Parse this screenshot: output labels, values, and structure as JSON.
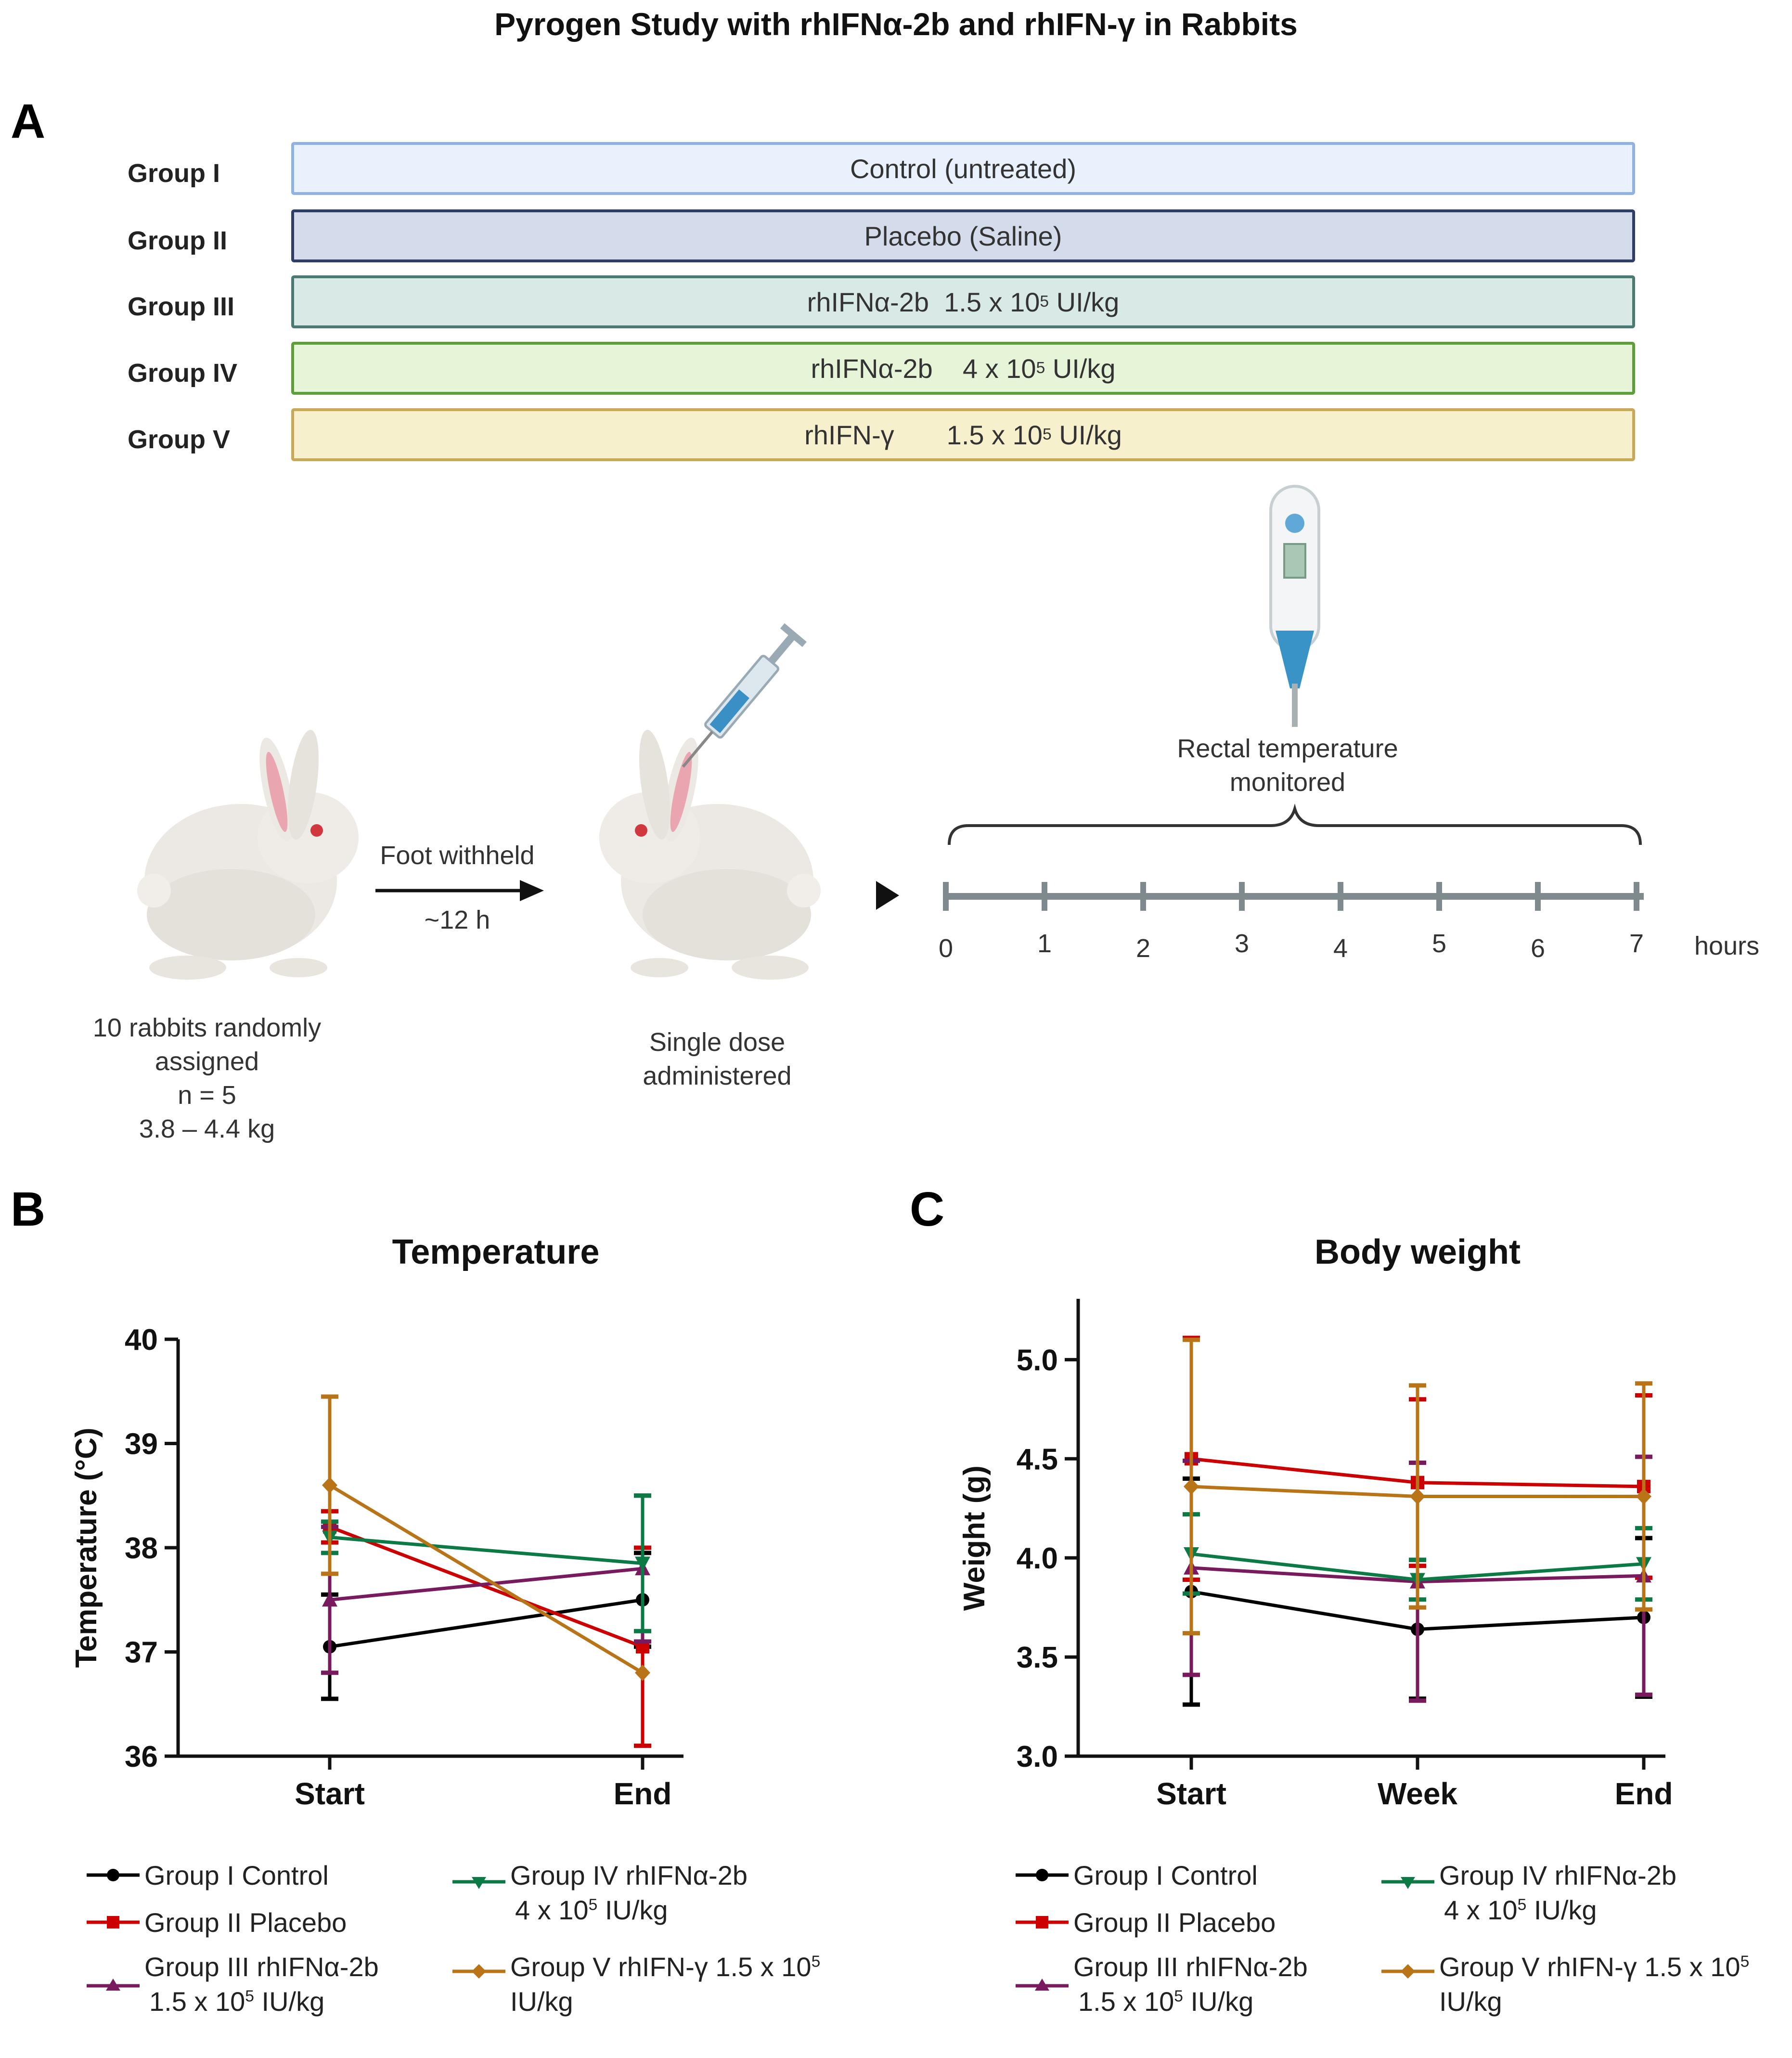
{
  "figure_title": "Pyrogen Study with rhIFNα-2b and rhIFN-γ in Rabbits",
  "panels": {
    "a": "A",
    "b": "B",
    "c": "C"
  },
  "groups": [
    {
      "label": "Group I",
      "bar_text": "Control (untreated)",
      "fill": "#e9f1fd",
      "border": "#8fb2e3"
    },
    {
      "label": "Group II",
      "bar_text": "Placebo (Saline)",
      "fill": "#d4dcec",
      "border": "#2f3e66"
    },
    {
      "label": "Group III",
      "bar_text_a": "rhIFNα-2b",
      "bar_text_b": "1.5 x 10",
      "exp": "5",
      "unit": "UI/kg",
      "fill": "#d9eae6",
      "border": "#4a7a72"
    },
    {
      "label": "Group IV",
      "bar_text_a": "rhIFNα-2b",
      "bar_text_b": "4 x 10",
      "exp": "5",
      "unit": "UI/kg",
      "fill": "#e6f4d8",
      "border": "#5e9e3a"
    },
    {
      "label": "Group V",
      "bar_text_a": "rhIFN-γ",
      "bar_text_b": "1.5 x 10",
      "exp": "5",
      "unit": "UI/kg",
      "fill": "#f7f0cc",
      "border": "#c8a95a"
    }
  ],
  "protocol": {
    "rabbits_line1": "10 rabbits randomly",
    "rabbits_line2": "assigned",
    "rabbits_line3": "n = 5",
    "rabbits_line4": "3.8 – 4.4 kg",
    "arrow_label_top": "Foot withheld",
    "arrow_label_bottom": "~12 h",
    "dose_line1": "Single dose",
    "dose_line2": "administered",
    "monitor_line1": "Rectal temperature",
    "monitor_line2": "monitored",
    "hours_ticks": [
      "0",
      "1",
      "2",
      "3",
      "4",
      "5",
      "6",
      "7"
    ],
    "hours_label": "hours"
  },
  "colors": {
    "group1": "#000000",
    "group2": "#cc0000",
    "group3": "#7a1a5e",
    "group4": "#0b7a45",
    "group5": "#b87417",
    "timeline": "#7f8a8e"
  },
  "legend_b": {
    "g1": "Group I Control",
    "g2": "Group II Placebo",
    "g3_line1": "Group III rhIFNα-2b",
    "g3_line2": "1.5 x 10",
    "g3_exp": "5",
    "g3_unit": "IU/kg",
    "g4_line1": "Group IV rhIFNα-2b",
    "g4_line2": "4 x 10",
    "g4_exp": "5",
    "g4_unit": "IU/kg",
    "g5_line1": "Group V rhIFN-γ 1.5 x 10",
    "g5_exp": "5",
    "g5_line2": "IU/kg"
  },
  "legend_c": {
    "g1": "Group I Control",
    "g2": "Group II Placebo",
    "g3_line1": "Group III rhIFNα-2b",
    "g3_line2": "1.5 x 10",
    "g3_exp": "5",
    "g3_unit": "IU/kg",
    "g4_line1": "Group IV rhIFNα-2b",
    "g4_line2": "4 x 10",
    "g4_exp": "5",
    "g4_unit": "IU/kg",
    "g5_line1": "Group V rhIFN-γ 1.5 x 10",
    "g5_exp": "5",
    "g5_line2": "IU/kg"
  },
  "chart_data": [
    {
      "id": "temperature",
      "type": "line",
      "title": "Temperature",
      "xlabel": "",
      "ylabel": "Temperature  (°C)",
      "categories": [
        "Start",
        "End"
      ],
      "ylim": [
        36,
        40
      ],
      "yticks": [
        "36",
        "37",
        "38",
        "39",
        "40"
      ],
      "series": [
        {
          "name": "Group I Control",
          "values": [
            37.05,
            37.5
          ],
          "err": [
            0.5,
            0.45
          ],
          "marker": "circle",
          "color": "#000000"
        },
        {
          "name": "Group II Placebo",
          "values": [
            38.2,
            37.05
          ],
          "err": [
            0.15,
            0.95
          ],
          "marker": "square",
          "color": "#cc0000"
        },
        {
          "name": "Group III rhIFNα-2b 1.5 x 10^5 IU/kg",
          "values": [
            37.5,
            37.8
          ],
          "err": [
            0.7,
            0.7
          ],
          "marker": "triangle-up",
          "color": "#7a1a5e"
        },
        {
          "name": "Group IV rhIFNα-2b 4 x 10^5 IU/kg",
          "values": [
            38.1,
            37.85
          ],
          "err": [
            0.15,
            0.65
          ],
          "marker": "triangle-down",
          "color": "#0b7a45"
        },
        {
          "name": "Group V rhIFN-γ 1.5 x 10^5 IU/kg",
          "values": [
            38.6,
            36.8
          ],
          "err": [
            0.85,
            0.0
          ],
          "marker": "diamond",
          "color": "#b87417"
        }
      ]
    },
    {
      "id": "bodyweight",
      "type": "line",
      "title": "Body weight",
      "xlabel": "",
      "ylabel": "Weight  (g)",
      "categories": [
        "Start",
        "Week",
        "End"
      ],
      "ylim": [
        3.0,
        5.2
      ],
      "yticks": [
        "3.0",
        "3.5",
        "4.0",
        "4.5",
        "5.0"
      ],
      "series": [
        {
          "name": "Group I Control",
          "values": [
            3.83,
            3.64,
            3.7
          ],
          "err": [
            0.57,
            0.35,
            0.4
          ],
          "marker": "circle",
          "color": "#000000"
        },
        {
          "name": "Group II Placebo",
          "values": [
            4.5,
            4.38,
            4.36
          ],
          "err": [
            0.61,
            0.42,
            0.46
          ],
          "marker": "square",
          "color": "#cc0000"
        },
        {
          "name": "Group III rhIFNα-2b 1.5 x 10^5 IU/kg",
          "values": [
            3.95,
            3.88,
            3.91
          ],
          "err": [
            0.54,
            0.6,
            0.6
          ],
          "marker": "triangle-up",
          "color": "#7a1a5e"
        },
        {
          "name": "Group IV rhIFNα-2b 4 x 10^5 IU/kg",
          "values": [
            4.02,
            3.89,
            3.97
          ],
          "err": [
            0.2,
            0.1,
            0.18
          ],
          "marker": "triangle-down",
          "color": "#0b7a45"
        },
        {
          "name": "Group V rhIFN-γ 1.5 x 10^5 IU/kg",
          "values": [
            4.36,
            4.31,
            4.31
          ],
          "err": [
            0.74,
            0.56,
            0.57
          ],
          "marker": "diamond",
          "color": "#b87417"
        }
      ]
    }
  ]
}
